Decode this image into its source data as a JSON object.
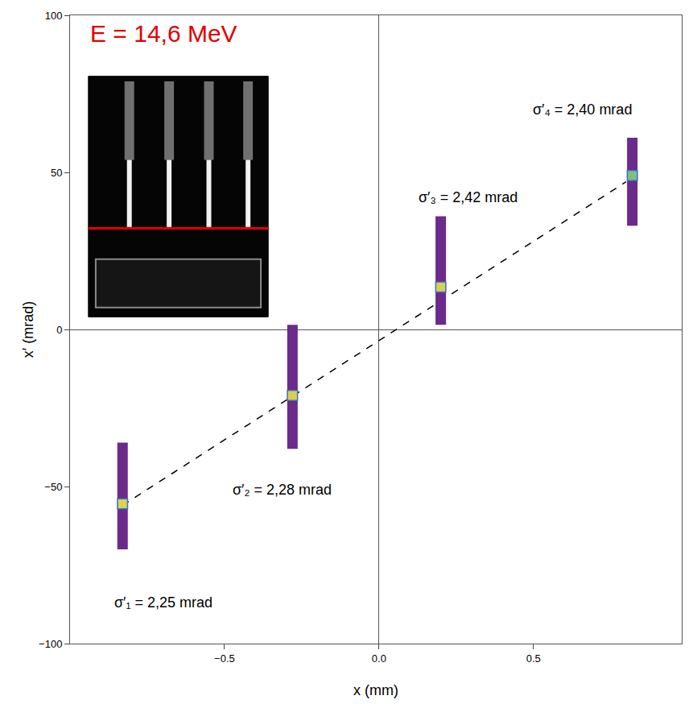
{
  "chart_data": {
    "type": "scatter",
    "title": "E = 14,6 MeV",
    "x_label": "x (mm)",
    "y_label": "x′ (mrad)",
    "x": [
      -0.83,
      -0.28,
      0.2,
      0.82
    ],
    "values": [
      -55.5,
      -21,
      13.5,
      49
    ],
    "y_low": [
      -70,
      -38,
      1.5,
      33
    ],
    "y_high": [
      -36,
      1.5,
      36,
      61
    ],
    "color": "#6b2a8c",
    "colors": [
      "#d9d64a",
      "#d6d24c",
      "#d9cf55",
      "#7cc27c"
    ],
    "marker": "square",
    "annotations": [
      "σ′₁ = 2,25 mrad",
      "σ′₂ = 2,28 mrad",
      "σ′₃ = 2,42 mrad",
      "σ′₄ = 2,40 mrad"
    ],
    "fit": {
      "x": [
        -0.83,
        0.8
      ],
      "values": [
        -56,
        47
      ],
      "line_style": "dashed",
      "color": "#000000"
    },
    "xlim": [
      -1.0,
      0.98
    ],
    "ylim": [
      -100,
      100
    ],
    "xticks": [
      {
        "value": -0.5,
        "label": "−0.5"
      },
      {
        "value": 0,
        "label": "0.0"
      },
      {
        "value": 0.5,
        "label": "0.5"
      }
    ],
    "yticks": [
      {
        "value": -100,
        "label": "−100"
      },
      {
        "value": -50,
        "label": "−50"
      },
      0,
      50,
      100
    ],
    "grid": false
  }
}
